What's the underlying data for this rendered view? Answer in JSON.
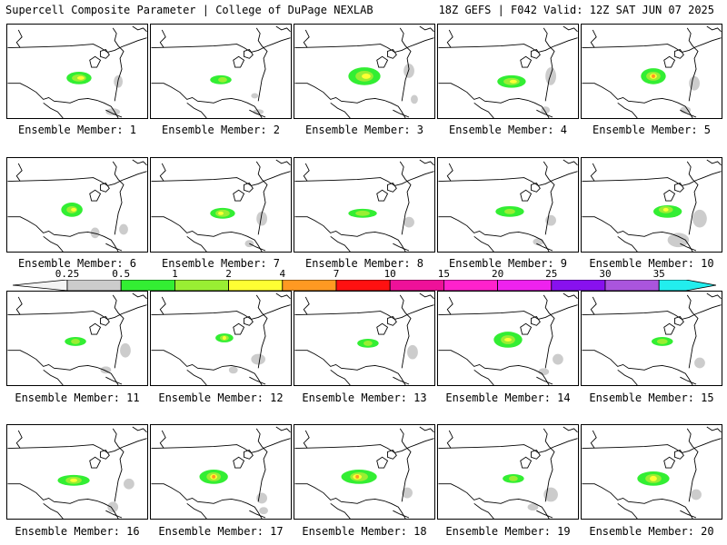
{
  "header": {
    "left_title": "Supercell Composite Parameter | College of DuPage NEXLAB",
    "right_title": "18Z GEFS | F042 Valid: 12Z SAT JUN 07 2025"
  },
  "colorbar": {
    "ticks": [
      "0.25",
      "0.5",
      "1",
      "2",
      "4",
      "7",
      "10",
      "15",
      "20",
      "25",
      "30",
      "35"
    ],
    "colors": [
      "#cccccc",
      "#33ee33",
      "#99ee33",
      "#ffff33",
      "#ff9922",
      "#ff1111",
      "#ee1199",
      "#ff22cc",
      "#ee22ee",
      "#8811ee",
      "#aa55dd",
      "#22eeee"
    ]
  },
  "members": [
    {
      "label": "Ensemble Member: 1"
    },
    {
      "label": "Ensemble Member: 2"
    },
    {
      "label": "Ensemble Member: 3"
    },
    {
      "label": "Ensemble Member: 4"
    },
    {
      "label": "Ensemble Member: 5"
    },
    {
      "label": "Ensemble Member: 6"
    },
    {
      "label": "Ensemble Member: 7"
    },
    {
      "label": "Ensemble Member: 8"
    },
    {
      "label": "Ensemble Member: 9"
    },
    {
      "label": "Ensemble Member: 10"
    },
    {
      "label": "Ensemble Member: 11"
    },
    {
      "label": "Ensemble Member: 12"
    },
    {
      "label": "Ensemble Member: 13"
    },
    {
      "label": "Ensemble Member: 14"
    },
    {
      "label": "Ensemble Member: 15"
    },
    {
      "label": "Ensemble Member: 16"
    },
    {
      "label": "Ensemble Member: 17"
    },
    {
      "label": "Ensemble Member: 18"
    },
    {
      "label": "Ensemble Member: 19"
    },
    {
      "label": "Ensemble Member: 20"
    }
  ]
}
